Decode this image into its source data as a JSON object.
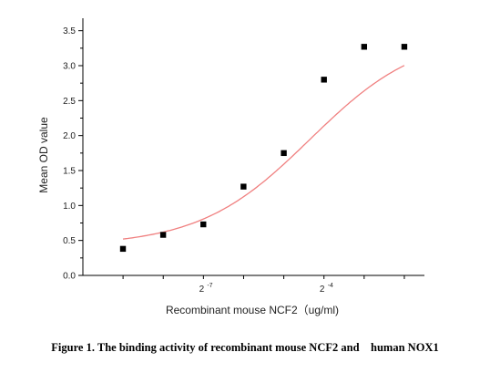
{
  "chart_data": {
    "type": "scatter",
    "xlabel": "Recombinant mouse NCF2（ug/ml)",
    "ylabel": "Mean OD value",
    "x_scale": "log2",
    "x_tick_labels": [
      {
        "base": "2",
        "exp": "-7",
        "x": 0.0078125
      },
      {
        "base": "2",
        "exp": "-4",
        "x": 0.0625
      }
    ],
    "ylim": [
      0,
      3.6
    ],
    "y_ticks": [
      "0.0",
      "0.5",
      "1.0",
      "1.5",
      "2.0",
      "2.5",
      "3.0",
      "3.5"
    ],
    "grid": false,
    "points": [
      {
        "x": 0.00195,
        "y": 0.38
      },
      {
        "x": 0.0039,
        "y": 0.58
      },
      {
        "x": 0.0078,
        "y": 0.73
      },
      {
        "x": 0.0156,
        "y": 1.27
      },
      {
        "x": 0.03125,
        "y": 1.75
      },
      {
        "x": 0.0625,
        "y": 2.8
      },
      {
        "x": 0.125,
        "y": 3.27
      },
      {
        "x": 0.25,
        "y": 3.27
      }
    ],
    "fit_curve": {
      "type": "sigmoidal",
      "color": "#f08080"
    },
    "marker_color": "#000000"
  },
  "caption": "Figure 1. The binding activity of recombinant mouse NCF2 and    human NOX1"
}
